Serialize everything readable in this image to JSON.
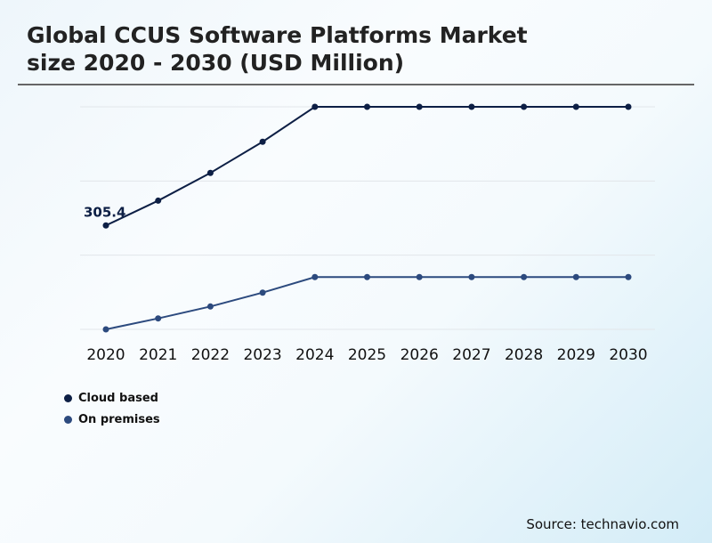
{
  "title_line1": "Global CCUS Software Platforms Market",
  "title_line2": "size 2020 - 2030 (USD Million)",
  "source": "Source: technavio.com",
  "colors": {
    "cloud": "#0d1f45",
    "onprem": "#2c4a7e",
    "grid": "#e2e6ea"
  },
  "chart_data": {
    "type": "line",
    "title": "Global CCUS Software Platforms Market size 2020 - 2030 (USD Million)",
    "xlabel": "",
    "ylabel": "",
    "ylim": [
      0,
      654
    ],
    "grid": true,
    "legend_position": "bottom-left",
    "categories": [
      "2020",
      "2021",
      "2022",
      "2023",
      "2024",
      "2025",
      "2026",
      "2027",
      "2028",
      "2029",
      "2030"
    ],
    "series": [
      {
        "name": "Cloud based",
        "values": [
          305.4,
          378.2,
          459.8,
          551.4,
          654,
          654,
          654,
          654,
          654,
          654,
          654
        ]
      },
      {
        "name": "On premises",
        "values": [
          0,
          32.2,
          67.2,
          108,
          153.6,
          153.6,
          153.6,
          153.6,
          153.6,
          153.6,
          153.6
        ]
      }
    ],
    "annotations": [
      {
        "series": "Cloud based",
        "category": "2020",
        "label": "305.4"
      }
    ]
  }
}
